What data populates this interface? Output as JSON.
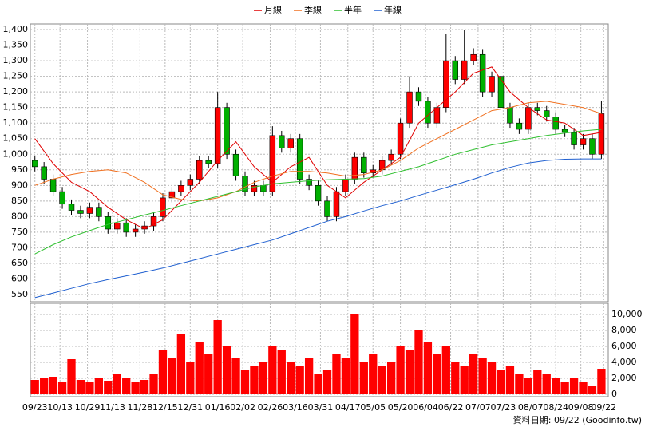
{
  "chart_data": {
    "type": "candlestick",
    "legend": "top",
    "grid": true,
    "up_color": "#ff0000",
    "down_color": "#00b000",
    "x": [
      0,
      4,
      8,
      12,
      16,
      20,
      24,
      28,
      32,
      36,
      40,
      44,
      48,
      52,
      56,
      60,
      64,
      68,
      72,
      76,
      80,
      84,
      88,
      92,
      96,
      100,
      104,
      108,
      112,
      116,
      120,
      124,
      128,
      132,
      136,
      140,
      144,
      148,
      152,
      156,
      160,
      164,
      168,
      172,
      176,
      180,
      184,
      188,
      192,
      196,
      200,
      204,
      208,
      212,
      216,
      220,
      224,
      228,
      232,
      236,
      240,
      244,
      248
    ],
    "xlim": [
      -2,
      251
    ],
    "xticks": [
      {
        "value": 0,
        "label": "09/23"
      },
      {
        "value": 11,
        "label": "10/13"
      },
      {
        "value": 23,
        "label": "10/29"
      },
      {
        "value": 34,
        "label": "11/13"
      },
      {
        "value": 46,
        "label": "11/28"
      },
      {
        "value": 57,
        "label": "12/15"
      },
      {
        "value": 68,
        "label": "12/31"
      },
      {
        "value": 80,
        "label": "01/16"
      },
      {
        "value": 91,
        "label": "02/02"
      },
      {
        "value": 103,
        "label": "02/26"
      },
      {
        "value": 114,
        "label": "03/16"
      },
      {
        "value": 125,
        "label": "03/31"
      },
      {
        "value": 137,
        "label": "04/17"
      },
      {
        "value": 148,
        "label": "05/05"
      },
      {
        "value": 160,
        "label": "05/20"
      },
      {
        "value": 171,
        "label": "06/04"
      },
      {
        "value": 182,
        "label": "06/22"
      },
      {
        "value": 194,
        "label": "07/07"
      },
      {
        "value": 205,
        "label": "07/23"
      },
      {
        "value": 217,
        "label": "08/07"
      },
      {
        "value": 228,
        "label": "08/24"
      },
      {
        "value": 239,
        "label": "09/08"
      },
      {
        "value": 249,
        "label": "09/22"
      }
    ],
    "open": [
      980,
      960,
      920,
      880,
      840,
      820,
      810,
      830,
      800,
      760,
      780,
      750,
      760,
      770,
      800,
      860,
      880,
      900,
      920,
      980,
      970,
      1150,
      1000,
      930,
      880,
      900,
      880,
      1060,
      1020,
      1050,
      920,
      900,
      850,
      800,
      880,
      920,
      990,
      940,
      950,
      980,
      1000,
      1100,
      1200,
      1170,
      1100,
      1150,
      1300,
      1240,
      1300,
      1320,
      1200,
      1250,
      1150,
      1100,
      1080,
      1150,
      1140,
      1120,
      1080,
      1070,
      1030,
      1050,
      1000
    ],
    "high": [
      995,
      975,
      935,
      895,
      855,
      835,
      845,
      845,
      815,
      795,
      795,
      775,
      785,
      815,
      875,
      895,
      915,
      935,
      995,
      995,
      1200,
      1165,
      1015,
      945,
      915,
      915,
      1090,
      1075,
      1065,
      1065,
      935,
      915,
      865,
      895,
      935,
      1005,
      1005,
      965,
      995,
      1015,
      1115,
      1250,
      1215,
      1185,
      1165,
      1385,
      1315,
      1400,
      1340,
      1335,
      1265,
      1265,
      1165,
      1115,
      1165,
      1165,
      1155,
      1135,
      1095,
      1085,
      1065,
      1065,
      1170
    ],
    "low": [
      945,
      905,
      865,
      825,
      805,
      795,
      795,
      785,
      745,
      745,
      735,
      735,
      745,
      755,
      785,
      845,
      865,
      885,
      905,
      955,
      955,
      985,
      915,
      865,
      865,
      865,
      865,
      1005,
      1005,
      905,
      885,
      835,
      785,
      785,
      865,
      905,
      925,
      925,
      935,
      965,
      985,
      1085,
      1155,
      1085,
      1085,
      1135,
      1225,
      1225,
      1285,
      1185,
      1185,
      1135,
      1085,
      1065,
      1065,
      1125,
      1105,
      1065,
      1055,
      1015,
      1015,
      985,
      985
    ],
    "close": [
      960,
      920,
      880,
      840,
      820,
      810,
      830,
      800,
      760,
      780,
      750,
      760,
      770,
      800,
      860,
      880,
      900,
      920,
      980,
      970,
      1150,
      1000,
      930,
      880,
      900,
      880,
      1060,
      1020,
      1050,
      920,
      900,
      850,
      800,
      880,
      920,
      990,
      940,
      950,
      980,
      1000,
      1100,
      1200,
      1170,
      1100,
      1150,
      1300,
      1240,
      1300,
      1320,
      1200,
      1250,
      1150,
      1100,
      1080,
      1150,
      1140,
      1120,
      1080,
      1070,
      1030,
      1050,
      1000,
      1130
    ],
    "ylim": [
      527,
      1418
    ],
    "yticks": [
      550,
      600,
      650,
      700,
      750,
      800,
      850,
      900,
      950,
      {
        "value": 1000,
        "label": "1,000"
      },
      {
        "value": 1050,
        "label": "1,050"
      },
      {
        "value": 1100,
        "label": "1,100"
      },
      {
        "value": 1150,
        "label": "1,150"
      },
      {
        "value": 1200,
        "label": "1,200"
      },
      {
        "value": 1250,
        "label": "1,250"
      },
      {
        "value": 1300,
        "label": "1,300"
      },
      {
        "value": 1350,
        "label": "1,350"
      },
      {
        "value": 1400,
        "label": "1,400"
      }
    ],
    "series": [
      {
        "name": "月線",
        "color": "#e00000",
        "x": [
          0,
          8,
          16,
          24,
          32,
          40,
          48,
          56,
          64,
          72,
          80,
          88,
          96,
          104,
          112,
          120,
          128,
          136,
          144,
          152,
          160,
          168,
          176,
          184,
          192,
          200,
          208,
          216,
          224,
          232,
          240,
          248
        ],
        "values": [
          1050,
          970,
          910,
          880,
          830,
          790,
          760,
          790,
          850,
          910,
          980,
          1040,
          960,
          910,
          960,
          990,
          900,
          860,
          910,
          950,
          990,
          1100,
          1150,
          1200,
          1260,
          1280,
          1200,
          1150,
          1110,
          1100,
          1060,
          1070
        ]
      },
      {
        "name": "季線",
        "color": "#f07020",
        "x": [
          0,
          8,
          16,
          24,
          32,
          40,
          48,
          56,
          64,
          72,
          80,
          88,
          96,
          104,
          112,
          120,
          128,
          136,
          144,
          152,
          160,
          168,
          176,
          184,
          192,
          200,
          208,
          216,
          224,
          232,
          240,
          248
        ],
        "values": [
          900,
          920,
          935,
          945,
          950,
          940,
          910,
          870,
          855,
          850,
          860,
          880,
          910,
          930,
          945,
          945,
          940,
          930,
          935,
          950,
          980,
          1020,
          1050,
          1080,
          1110,
          1140,
          1150,
          1165,
          1170,
          1160,
          1150,
          1130
        ]
      },
      {
        "name": "半年",
        "color": "#30c030",
        "x": [
          0,
          8,
          16,
          24,
          32,
          40,
          48,
          56,
          64,
          72,
          80,
          88,
          96,
          104,
          112,
          120,
          128,
          136,
          144,
          152,
          160,
          168,
          176,
          184,
          192,
          200,
          208,
          216,
          224,
          232,
          240,
          248
        ],
        "values": [
          680,
          710,
          735,
          755,
          775,
          790,
          805,
          820,
          835,
          850,
          865,
          880,
          895,
          905,
          910,
          915,
          918,
          920,
          922,
          930,
          945,
          960,
          980,
          1000,
          1015,
          1030,
          1040,
          1050,
          1060,
          1068,
          1075,
          1080
        ]
      },
      {
        "name": "年線",
        "color": "#2060d0",
        "x": [
          0,
          8,
          16,
          24,
          32,
          40,
          48,
          56,
          64,
          72,
          80,
          88,
          96,
          104,
          112,
          120,
          128,
          136,
          144,
          152,
          160,
          168,
          176,
          184,
          192,
          200,
          208,
          216,
          224,
          232,
          240,
          248
        ],
        "values": [
          540,
          555,
          570,
          585,
          598,
          610,
          622,
          635,
          650,
          665,
          680,
          695,
          710,
          725,
          745,
          765,
          785,
          800,
          818,
          835,
          850,
          868,
          885,
          902,
          920,
          940,
          958,
          972,
          980,
          984,
          985,
          985
        ]
      }
    ],
    "volume": {
      "color": "#ff0000",
      "ylim": [
        -300,
        11400
      ],
      "yticks": [
        0,
        {
          "value": 2000,
          "label": "2,000"
        },
        {
          "value": 4000,
          "label": "4,000"
        },
        {
          "value": 6000,
          "label": "6,000"
        },
        {
          "value": 8000,
          "label": "8,000"
        },
        {
          "value": 10000,
          "label": "10,000"
        }
      ],
      "values": [
        1800,
        2000,
        2200,
        1500,
        4400,
        1800,
        1600,
        2000,
        1700,
        2500,
        2000,
        1500,
        1800,
        2500,
        5500,
        4500,
        7500,
        4000,
        6500,
        5000,
        9300,
        6000,
        4500,
        3000,
        3500,
        4000,
        6000,
        5500,
        4000,
        3500,
        4500,
        2500,
        3000,
        5000,
        4500,
        10000,
        4000,
        5000,
        3500,
        4000,
        6000,
        5500,
        8000,
        6500,
        5000,
        6000,
        4000,
        3500,
        5000,
        4500,
        4000,
        3000,
        3500,
        2500,
        2000,
        3000,
        2500,
        2000,
        1500,
        2000,
        1500,
        1000,
        3200
      ]
    },
    "note": "資料日期: 09/22 (Goodinfo.tw)"
  }
}
